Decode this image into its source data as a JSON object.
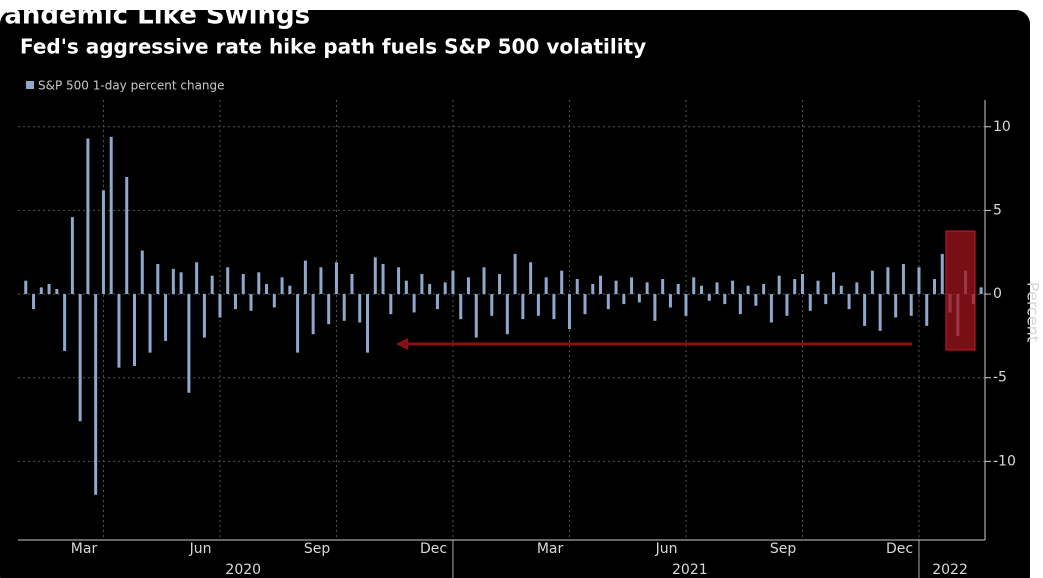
{
  "chart_data": {
    "type": "bar",
    "title": "Pandemic Like Swings",
    "subtitle": "Fed's aggressive rate hike path fuels S&P 500 volatility",
    "y_label": "Percent",
    "series": [
      {
        "name": "S&P 500 1-day percent change",
        "color": "#8fa8cc",
        "values": [
          0.8,
          -0.9,
          0.4,
          0.6,
          0.3,
          -3.4,
          4.6,
          -7.6,
          9.3,
          -12.0,
          6.2,
          9.4,
          -4.4,
          7.0,
          -4.3,
          2.6,
          -3.5,
          1.8,
          -2.8,
          1.5,
          1.3,
          -5.9,
          1.9,
          -2.6,
          1.1,
          -1.4,
          1.6,
          -0.9,
          1.2,
          -1.0,
          1.3,
          0.6,
          -0.8,
          1.0,
          0.5,
          -3.5,
          2.0,
          -2.4,
          1.6,
          -1.8,
          1.9,
          -1.6,
          1.2,
          -1.7,
          -3.5,
          2.2,
          1.8,
          -1.2,
          1.6,
          0.8,
          -1.1,
          1.2,
          0.6,
          -0.9,
          0.7,
          1.4,
          -1.5,
          1.0,
          -2.6,
          1.6,
          -1.3,
          1.2,
          -2.4,
          2.4,
          -1.5,
          1.9,
          -1.3,
          1.0,
          -1.5,
          1.4,
          -2.1,
          0.9,
          -1.2,
          0.6,
          1.1,
          -0.9,
          0.8,
          -0.6,
          1.0,
          -0.5,
          0.7,
          -1.6,
          0.9,
          -0.8,
          0.6,
          -1.3,
          1.0,
          0.5,
          -0.4,
          0.7,
          -0.6,
          0.8,
          -1.2,
          0.5,
          -0.7,
          0.6,
          -1.7,
          1.1,
          -1.3,
          0.9,
          1.2,
          -1.0,
          0.8,
          -0.6,
          1.3,
          0.5,
          -0.9,
          0.7,
          -1.9,
          1.4,
          -2.2,
          1.6,
          -1.4,
          1.8,
          -1.3,
          1.6,
          -1.9,
          0.9,
          2.4,
          -1.1,
          -2.5,
          1.4,
          -0.6,
          0.4
        ]
      }
    ],
    "x": [
      1.0,
      1.2,
      1.4,
      1.6,
      1.8,
      2.0,
      2.2,
      2.4,
      2.6,
      2.8,
      3.0,
      3.2,
      3.4,
      3.6,
      3.8,
      4.0,
      4.2,
      4.4,
      4.6,
      4.8,
      5.0,
      5.2,
      5.4,
      5.6,
      5.8,
      6.0,
      6.2,
      6.4,
      6.6,
      6.8,
      7.0,
      7.2,
      7.4,
      7.6,
      7.8,
      8.0,
      8.2,
      8.4,
      8.6,
      8.8,
      9.0,
      9.2,
      9.4,
      9.6,
      9.8,
      10.0,
      10.2,
      10.4,
      10.6,
      10.8,
      11.0,
      11.2,
      11.4,
      11.6,
      11.8,
      12.0,
      12.2,
      12.4,
      12.6,
      12.8,
      13.0,
      13.2,
      13.4,
      13.6,
      13.8,
      14.0,
      14.2,
      14.4,
      14.6,
      14.8,
      15.0,
      15.2,
      15.4,
      15.6,
      15.8,
      16.0,
      16.2,
      16.4,
      16.6,
      16.8,
      17.0,
      17.2,
      17.4,
      17.6,
      17.8,
      18.0,
      18.2,
      18.4,
      18.6,
      18.8,
      19.0,
      19.2,
      19.4,
      19.6,
      19.8,
      20.0,
      20.2,
      20.4,
      20.6,
      20.8,
      21.0,
      21.2,
      21.4,
      21.6,
      21.8,
      22.0,
      22.2,
      22.4,
      22.6,
      22.8,
      23.0,
      23.2,
      23.4,
      23.6,
      23.8,
      24.0,
      24.2,
      24.4,
      24.6,
      24.8,
      25.0,
      25.2,
      25.4,
      25.6
    ],
    "xlim": [
      0.8,
      25.7
    ],
    "xticks": [
      {
        "value": 2.5,
        "label": "Mar"
      },
      {
        "value": 5.5,
        "label": "Jun"
      },
      {
        "value": 8.5,
        "label": "Sep"
      },
      {
        "value": 11.5,
        "label": "Dec"
      },
      {
        "value": 14.5,
        "label": "Mar"
      },
      {
        "value": 17.5,
        "label": "Jun"
      },
      {
        "value": 20.5,
        "label": "Sep"
      },
      {
        "value": 23.5,
        "label": "Dec"
      }
    ],
    "xgrid": [
      3,
      6,
      9,
      12,
      15,
      18,
      21,
      24
    ],
    "years": [
      {
        "value": 6.6,
        "label": "2020"
      },
      {
        "value": 18.1,
        "label": "2021"
      },
      {
        "value": 24.8,
        "label": "2022"
      }
    ],
    "year_separators": [
      12,
      24
    ],
    "ylim": [
      -14.7,
      11.6
    ],
    "yticks": [
      10,
      5,
      0,
      -5,
      -10
    ],
    "grid": true
  }
}
